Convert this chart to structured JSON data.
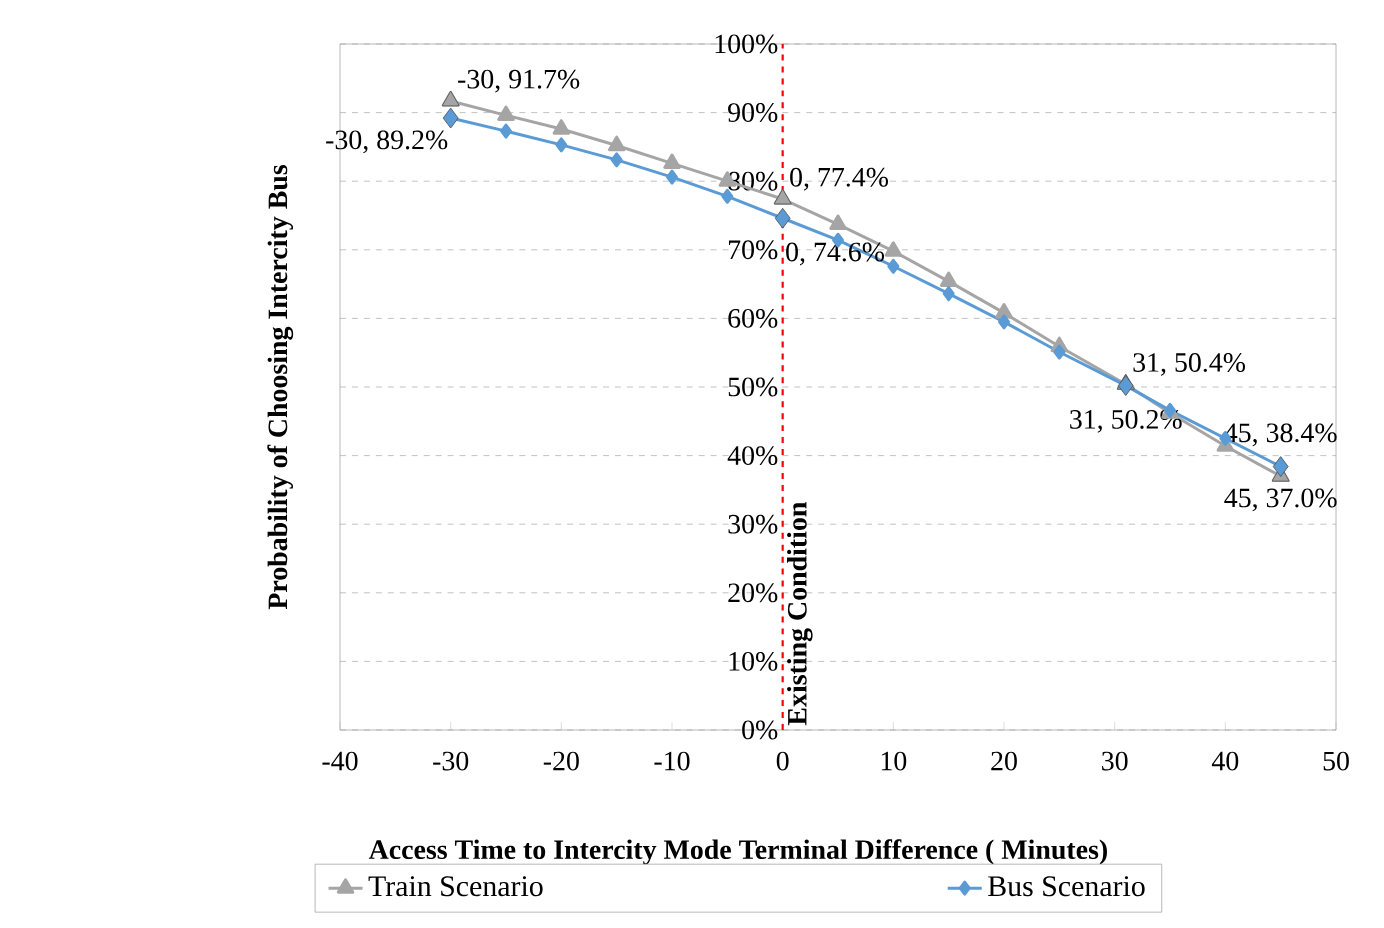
{
  "chart_data": {
    "type": "line",
    "xlabel": "Access Time to Intercity Mode Terminal Difference ( Minutes)",
    "ylabel": "Probability of Choosing  Intercity Bus",
    "x": [
      -30,
      -25,
      -20,
      -15,
      -10,
      -5,
      0,
      5,
      10,
      15,
      20,
      25,
      31,
      35,
      40,
      45
    ],
    "series": [
      {
        "name": "Train Scenario",
        "color": "#a5a5a5",
        "marker": "triangle",
        "values": [
          91.7,
          89.6,
          87.6,
          85.2,
          82.6,
          80.0,
          77.4,
          73.7,
          69.8,
          65.4,
          60.8,
          55.9,
          50.4,
          46.2,
          41.4,
          37.0
        ],
        "value_labels": [
          "-30, 91.7%",
          null,
          null,
          null,
          null,
          null,
          "0, 77.4%",
          null,
          null,
          null,
          null,
          null,
          "31, 50.4%",
          null,
          null,
          "45, 37.0%"
        ]
      },
      {
        "name": "Bus Scenario",
        "color": "#5b9bd5",
        "marker": "diamond",
        "values": [
          89.2,
          87.3,
          85.3,
          83.1,
          80.6,
          77.8,
          74.6,
          71.4,
          67.6,
          63.6,
          59.5,
          55.1,
          50.2,
          46.6,
          42.5,
          38.4
        ],
        "value_labels": [
          "-30, 89.2%",
          null,
          null,
          null,
          null,
          null,
          "0, 74.6%",
          null,
          null,
          null,
          null,
          null,
          "31, 50.2%",
          null,
          null,
          "45, 38.4%"
        ]
      }
    ],
    "xlim": [
      -40,
      50
    ],
    "xticks": [
      -40,
      -30,
      -20,
      -10,
      0,
      10,
      20,
      30,
      40,
      50
    ],
    "ylim": [
      0,
      100
    ],
    "yticks": [
      {
        "value": 0,
        "label": "0%"
      },
      {
        "value": 10,
        "label": "10%"
      },
      {
        "value": 20,
        "label": "20%"
      },
      {
        "value": 30,
        "label": "30%"
      },
      {
        "value": 40,
        "label": "40%"
      },
      {
        "value": 50,
        "label": "50%"
      },
      {
        "value": 60,
        "label": "60%"
      },
      {
        "value": 70,
        "label": "70%"
      },
      {
        "value": 80,
        "label": "80%"
      },
      {
        "value": 90,
        "label": "90%"
      },
      {
        "value": 100,
        "label": "100%"
      }
    ],
    "grid": "y",
    "legend": "bottom",
    "ref_lines": [
      {
        "axis": "x",
        "value": 0,
        "label": "Existing Condition",
        "color": "#ff0000",
        "line_style": "dashed"
      }
    ]
  }
}
